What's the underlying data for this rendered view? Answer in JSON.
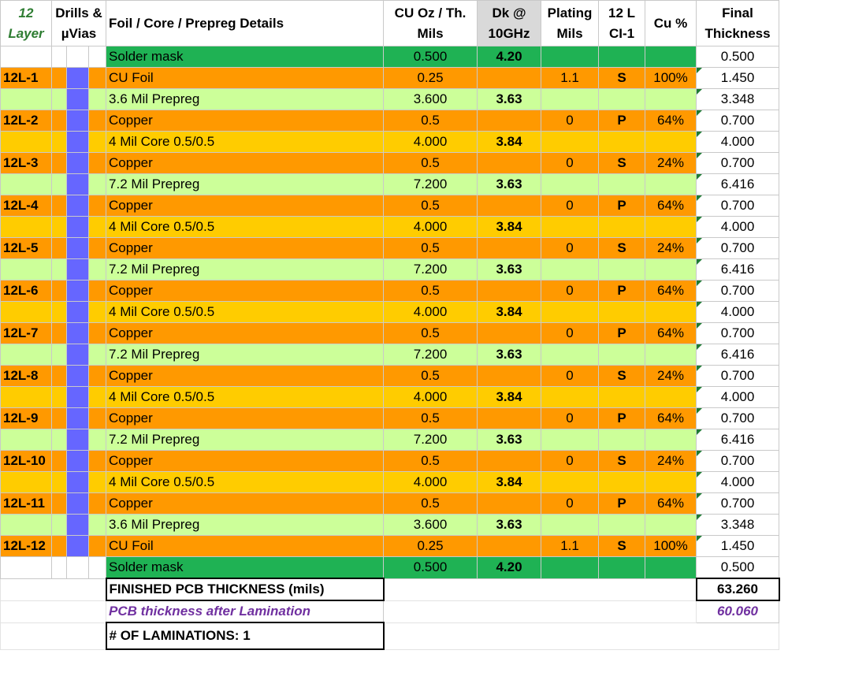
{
  "header": {
    "layer_count": "12",
    "layer_label": "Layer",
    "drills_line1": "Drills &",
    "drills_line2": "µVias",
    "details": "Foil / Core / Prepreg  Details",
    "cu_line1": "CU Oz / Th.",
    "cu_line2": "Mils",
    "dk_line1": "Dk @",
    "dk_line2": "10GHz",
    "plating_line1": "Plating",
    "plating_line2": "Mils",
    "ci_line1": "12 L",
    "ci_line2": "CI-1",
    "cupct": "Cu %",
    "final_line1": "Final",
    "final_line2": "Thickness"
  },
  "rows": [
    {
      "layer": "",
      "detail": "Solder mask",
      "cu": "0.500",
      "dk": "4.20",
      "plating": "",
      "ci": "",
      "cupct": "",
      "final": "0.500",
      "kind": "mask"
    },
    {
      "layer": "12L-1",
      "detail": "CU Foil",
      "cu": "0.25",
      "dk": "",
      "plating": "1.1",
      "ci": "S",
      "cupct": "100%",
      "final": "1.450",
      "kind": "copper"
    },
    {
      "layer": "",
      "detail": "3.6 Mil Prepreg",
      "cu": "3.600",
      "dk": "3.63",
      "plating": "",
      "ci": "",
      "cupct": "",
      "final": "3.348",
      "kind": "prepreg"
    },
    {
      "layer": "12L-2",
      "detail": "Copper",
      "cu": "0.5",
      "dk": "",
      "plating": "0",
      "ci": "P",
      "cupct": "64%",
      "final": "0.700",
      "kind": "copper"
    },
    {
      "layer": "",
      "detail": "4 Mil Core 0.5/0.5",
      "cu": "4.000",
      "dk": "3.84",
      "plating": "",
      "ci": "",
      "cupct": "",
      "final": "4.000",
      "kind": "core"
    },
    {
      "layer": "12L-3",
      "detail": "Copper",
      "cu": "0.5",
      "dk": "",
      "plating": "0",
      "ci": "S",
      "cupct": "24%",
      "final": "0.700",
      "kind": "copper"
    },
    {
      "layer": "",
      "detail": "7.2 Mil Prepreg",
      "cu": "7.200",
      "dk": "3.63",
      "plating": "",
      "ci": "",
      "cupct": "",
      "final": "6.416",
      "kind": "prepreg"
    },
    {
      "layer": "12L-4",
      "detail": "Copper",
      "cu": "0.5",
      "dk": "",
      "plating": "0",
      "ci": "P",
      "cupct": "64%",
      "final": "0.700",
      "kind": "copper"
    },
    {
      "layer": "",
      "detail": "4 Mil Core 0.5/0.5",
      "cu": "4.000",
      "dk": "3.84",
      "plating": "",
      "ci": "",
      "cupct": "",
      "final": "4.000",
      "kind": "core"
    },
    {
      "layer": "12L-5",
      "detail": "Copper",
      "cu": "0.5",
      "dk": "",
      "plating": "0",
      "ci": "S",
      "cupct": "24%",
      "final": "0.700",
      "kind": "copper"
    },
    {
      "layer": "",
      "detail": "7.2 Mil Prepreg",
      "cu": "7.200",
      "dk": "3.63",
      "plating": "",
      "ci": "",
      "cupct": "",
      "final": "6.416",
      "kind": "prepreg"
    },
    {
      "layer": "12L-6",
      "detail": "Copper",
      "cu": "0.5",
      "dk": "",
      "plating": "0",
      "ci": "P",
      "cupct": "64%",
      "final": "0.700",
      "kind": "copper"
    },
    {
      "layer": "",
      "detail": "4 Mil Core 0.5/0.5",
      "cu": "4.000",
      "dk": "3.84",
      "plating": "",
      "ci": "",
      "cupct": "",
      "final": "4.000",
      "kind": "core"
    },
    {
      "layer": "12L-7",
      "detail": "Copper",
      "cu": "0.5",
      "dk": "",
      "plating": "0",
      "ci": "P",
      "cupct": "64%",
      "final": "0.700",
      "kind": "copper"
    },
    {
      "layer": "",
      "detail": "7.2 Mil Prepreg",
      "cu": "7.200",
      "dk": "3.63",
      "plating": "",
      "ci": "",
      "cupct": "",
      "final": "6.416",
      "kind": "prepreg"
    },
    {
      "layer": "12L-8",
      "detail": "Copper",
      "cu": "0.5",
      "dk": "",
      "plating": "0",
      "ci": "S",
      "cupct": "24%",
      "final": "0.700",
      "kind": "copper"
    },
    {
      "layer": "",
      "detail": "4 Mil Core 0.5/0.5",
      "cu": "4.000",
      "dk": "3.84",
      "plating": "",
      "ci": "",
      "cupct": "",
      "final": "4.000",
      "kind": "core"
    },
    {
      "layer": "12L-9",
      "detail": "Copper",
      "cu": "0.5",
      "dk": "",
      "plating": "0",
      "ci": "P",
      "cupct": "64%",
      "final": "0.700",
      "kind": "copper"
    },
    {
      "layer": "",
      "detail": "7.2 Mil Prepreg",
      "cu": "7.200",
      "dk": "3.63",
      "plating": "",
      "ci": "",
      "cupct": "",
      "final": "6.416",
      "kind": "prepreg"
    },
    {
      "layer": "12L-10",
      "detail": "Copper",
      "cu": "0.5",
      "dk": "",
      "plating": "0",
      "ci": "S",
      "cupct": "24%",
      "final": "0.700",
      "kind": "copper"
    },
    {
      "layer": "",
      "detail": "4 Mil Core 0.5/0.5",
      "cu": "4.000",
      "dk": "3.84",
      "plating": "",
      "ci": "",
      "cupct": "",
      "final": "4.000",
      "kind": "core"
    },
    {
      "layer": "12L-11",
      "detail": "Copper",
      "cu": "0.5",
      "dk": "",
      "plating": "0",
      "ci": "P",
      "cupct": "64%",
      "final": "0.700",
      "kind": "copper"
    },
    {
      "layer": "",
      "detail": "3.6 Mil Prepreg",
      "cu": "3.600",
      "dk": "3.63",
      "plating": "",
      "ci": "",
      "cupct": "",
      "final": "3.348",
      "kind": "prepreg"
    },
    {
      "layer": "12L-12",
      "detail": "CU Foil",
      "cu": "0.25",
      "dk": "",
      "plating": "1.1",
      "ci": "S",
      "cupct": "100%",
      "final": "1.450",
      "kind": "copper"
    },
    {
      "layer": "",
      "detail": "Solder mask",
      "cu": "0.500",
      "dk": "4.20",
      "plating": "",
      "ci": "",
      "cupct": "",
      "final": "0.500",
      "kind": "mask"
    }
  ],
  "summary": {
    "finished_label": "FINISHED PCB  THICKNESS (mils)",
    "finished_value": "63.260",
    "lamination_label": "PCB thickness after Lamination",
    "lamination_value": "60.060",
    "laminations_label": "# OF LAMINATIONS: 1"
  },
  "colors": {
    "copper": "#ff9900",
    "core": "#ffcc00",
    "prepreg": "#ccff99",
    "mask": "#1fb254",
    "via": "#6666ff",
    "layer_header": "#2e7d32",
    "lamination_text": "#7030a0"
  }
}
